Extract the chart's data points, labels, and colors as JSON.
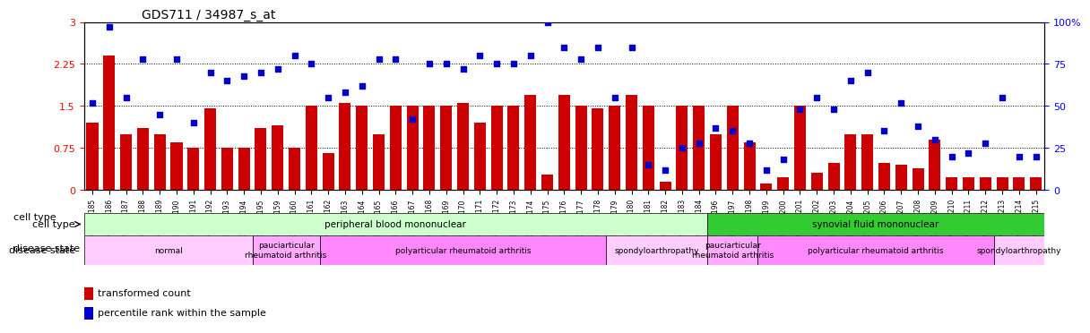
{
  "title": "GDS711 / 34987_s_at",
  "samples": [
    "GSM23185",
    "GSM23186",
    "GSM23187",
    "GSM23188",
    "GSM23189",
    "GSM23190",
    "GSM23191",
    "GSM23192",
    "GSM23193",
    "GSM23194",
    "GSM23195",
    "GSM23159",
    "GSM23160",
    "GSM23161",
    "GSM23162",
    "GSM23163",
    "GSM23164",
    "GSM23165",
    "GSM23166",
    "GSM23167",
    "GSM23168",
    "GSM23169",
    "GSM23170",
    "GSM23171",
    "GSM23172",
    "GSM23173",
    "GSM23174",
    "GSM23175",
    "GSM23176",
    "GSM23177",
    "GSM23178",
    "GSM23179",
    "GSM23180",
    "GSM23181",
    "GSM23182",
    "GSM23183",
    "GSM23184",
    "GSM23196",
    "GSM23197",
    "GSM23198",
    "GSM23199",
    "GSM23200",
    "GSM23201",
    "GSM23202",
    "GSM23203",
    "GSM23204",
    "GSM23205",
    "GSM23206",
    "GSM23207",
    "GSM23208",
    "GSM23209",
    "GSM23210",
    "GSM23211",
    "GSM23212",
    "GSM23213",
    "GSM23214",
    "GSM23215"
  ],
  "bar_values": [
    1.2,
    2.4,
    1.0,
    1.1,
    1.0,
    0.85,
    0.75,
    1.45,
    0.75,
    0.75,
    1.1,
    1.15,
    0.75,
    1.5,
    0.65,
    1.55,
    1.5,
    1.0,
    1.5,
    1.5,
    1.5,
    1.5,
    1.55,
    1.2,
    1.5,
    1.5,
    1.7,
    0.28,
    1.7,
    1.5,
    1.45,
    1.5,
    1.7,
    1.5,
    0.15,
    1.5,
    1.5,
    1.0,
    1.5,
    0.85,
    0.12,
    0.22,
    1.5,
    0.3,
    0.48,
    1.0,
    1.0,
    0.48,
    0.45,
    0.38,
    0.9,
    0.22,
    0.22,
    0.22,
    0.22,
    0.22,
    0.22
  ],
  "dot_values": [
    52,
    97,
    55,
    78,
    45,
    78,
    40,
    70,
    65,
    68,
    70,
    72,
    80,
    75,
    55,
    58,
    62,
    78,
    78,
    42,
    75,
    75,
    72,
    80,
    75,
    75,
    80,
    100,
    85,
    78,
    85,
    55,
    85,
    15,
    12,
    25,
    28,
    37,
    35,
    28,
    12,
    18,
    48,
    55,
    48,
    65,
    70,
    35,
    52,
    38,
    30,
    20,
    22,
    28,
    55,
    20,
    20
  ],
  "ylim_left": [
    0,
    3.0
  ],
  "ylim_right": [
    0,
    100
  ],
  "yticks_left": [
    0,
    0.75,
    1.5,
    2.25,
    3.0
  ],
  "ytick_labels_left": [
    "0",
    "0.75",
    "1.5",
    "2.25",
    "3"
  ],
  "yticks_right": [
    0,
    25,
    50,
    75,
    100
  ],
  "ytick_labels_right": [
    "0",
    "25",
    "50",
    "75",
    "100%"
  ],
  "bar_color": "#cc0000",
  "dot_color": "#0000cc",
  "bg_color": "#ffffff",
  "cell_type_regions": [
    {
      "label": "peripheral blood mononuclear",
      "start": 0,
      "end": 36,
      "color": "#ccffcc"
    },
    {
      "label": "synovial fluid mononuclear",
      "start": 37,
      "end": 56,
      "color": "#33cc33"
    }
  ],
  "disease_regions": [
    {
      "label": "normal",
      "start": 0,
      "end": 9,
      "color": "#ffccff"
    },
    {
      "label": "pauciarticular\nrheumatoid arthritis",
      "start": 10,
      "end": 13,
      "color": "#ffaaff"
    },
    {
      "label": "polyarticular rheumatoid arthritis",
      "start": 14,
      "end": 30,
      "color": "#ff88ff"
    },
    {
      "label": "spondyloarthropathy",
      "start": 31,
      "end": 36,
      "color": "#ffccff"
    },
    {
      "label": "pauciarticular\nrheumatoid arthritis",
      "start": 37,
      "end": 39,
      "color": "#ffaaff"
    },
    {
      "label": "polyarticular rheumatoid arthritis",
      "start": 40,
      "end": 53,
      "color": "#ff88ff"
    },
    {
      "label": "spondyloarthropathy",
      "start": 54,
      "end": 56,
      "color": "#ffccff"
    }
  ]
}
